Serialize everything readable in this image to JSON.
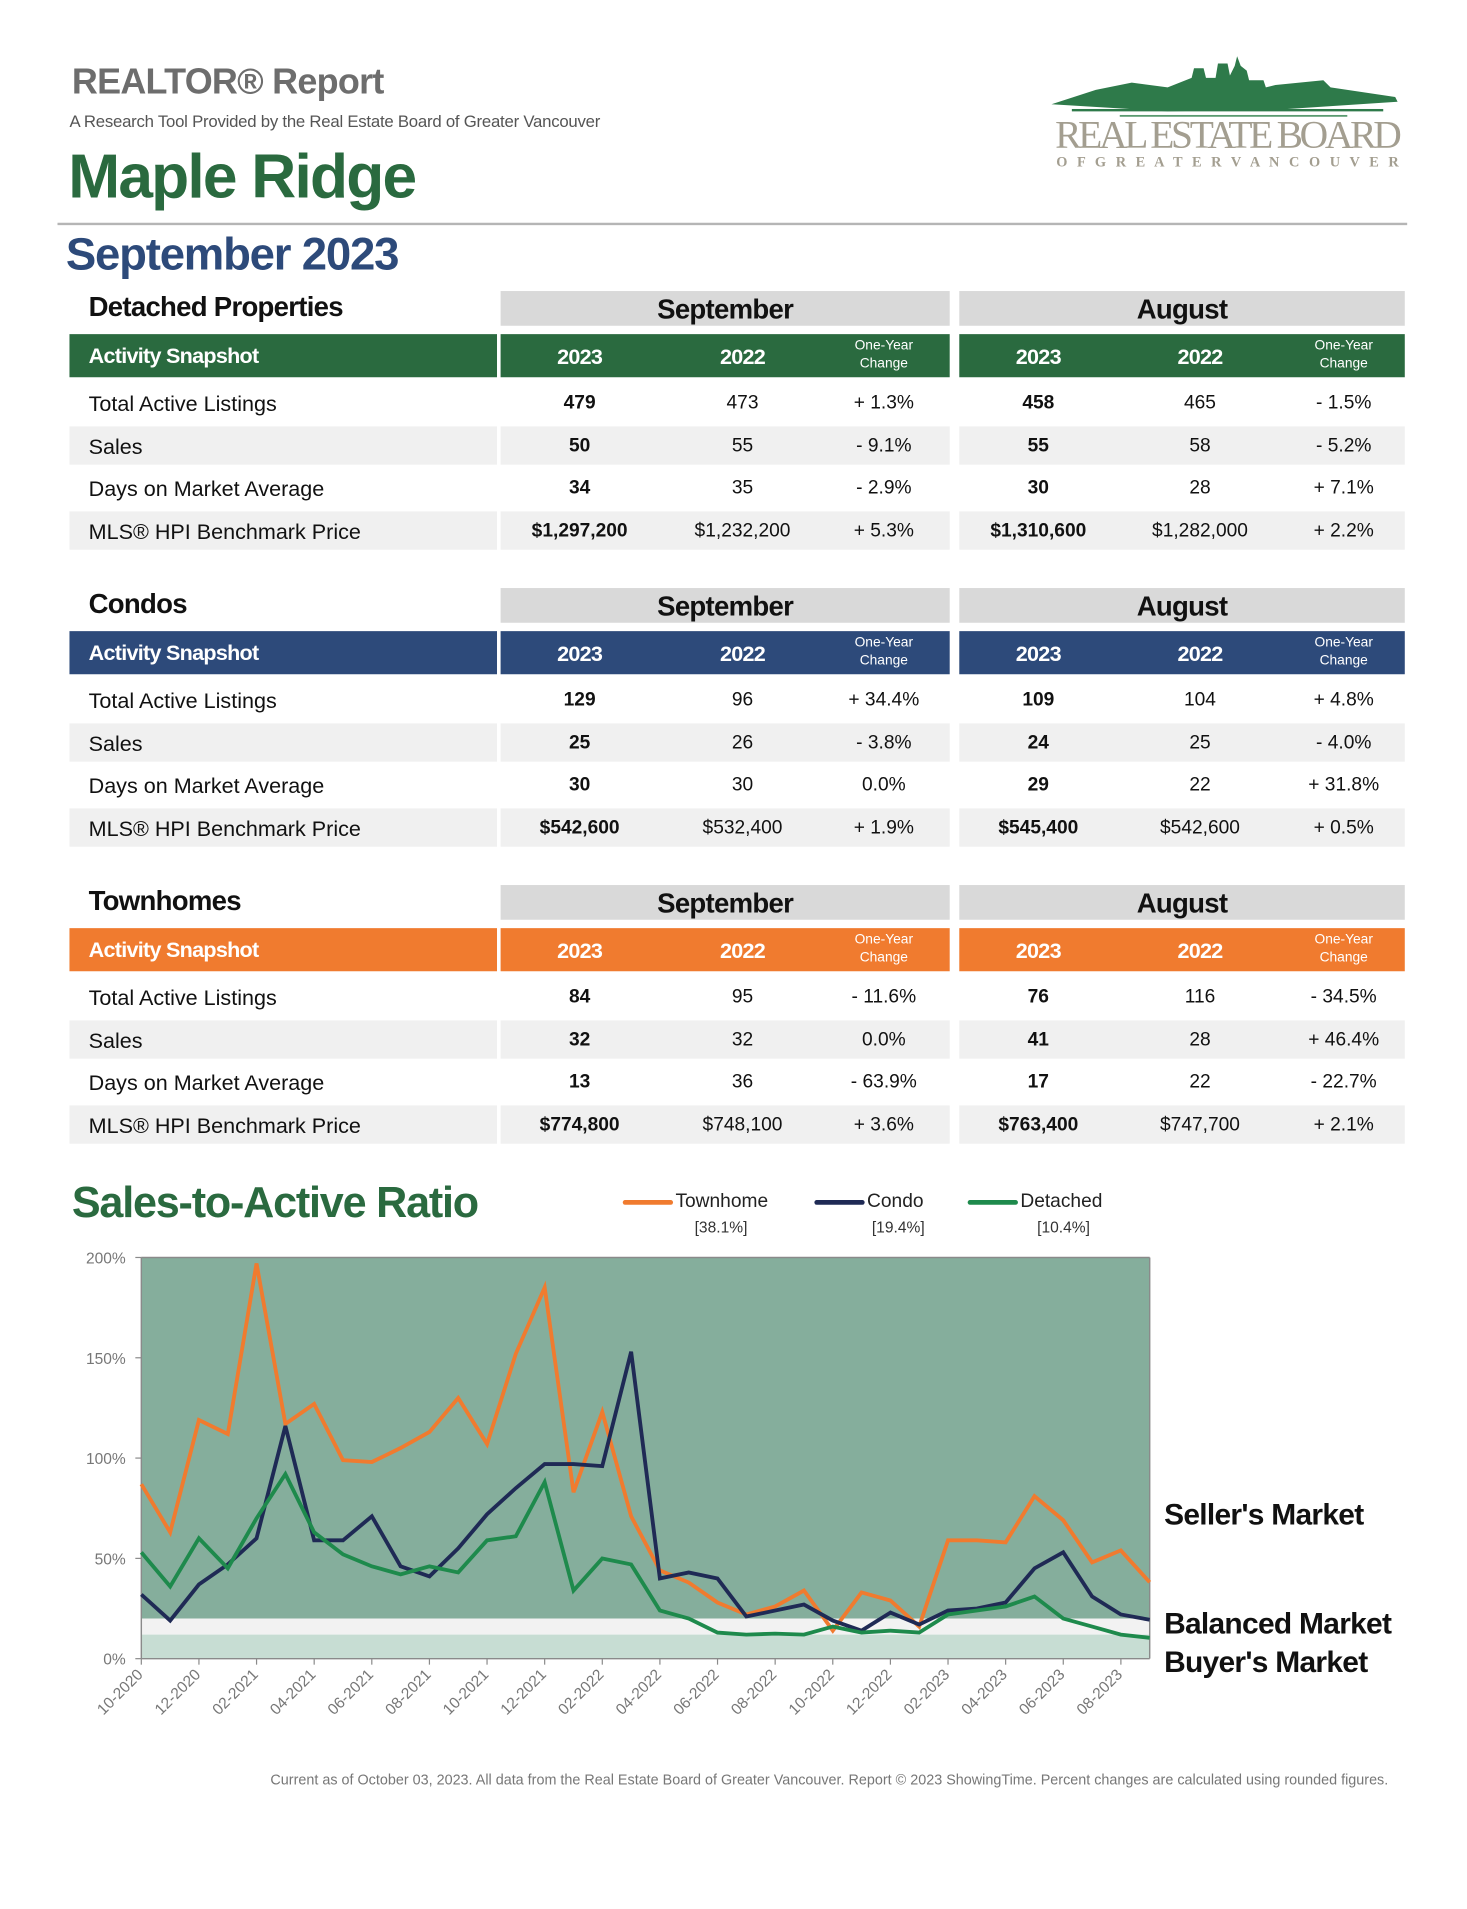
{
  "header": {
    "report_title": "REALTOR® Report",
    "subtitle": "A Research Tool Provided by the Real Estate Board of Greater Vancouver",
    "area": "Maple Ridge",
    "period": "September 2023",
    "logo": {
      "line1": "REAL ESTATE BOARD",
      "line2": "OF GREATER VANCOUVER",
      "color": "#2e7a4a",
      "text_color": "#a39e90"
    }
  },
  "columns": {
    "month1": "September",
    "month2": "August",
    "snapshot_label": "Activity Snapshot",
    "year_current": "2023",
    "year_prior": "2022",
    "change_line1": "One-Year",
    "change_line2": "Change"
  },
  "sections": [
    {
      "title": "Detached Properties",
      "color": "#2a6a3f",
      "rows": [
        {
          "label": "Total Active Listings",
          "m1": [
            "479",
            "473",
            "+ 1.3%"
          ],
          "m2": [
            "458",
            "465",
            "- 1.5%"
          ]
        },
        {
          "label": "Sales",
          "m1": [
            "50",
            "55",
            "- 9.1%"
          ],
          "m2": [
            "55",
            "58",
            "- 5.2%"
          ]
        },
        {
          "label": "Days on Market Average",
          "m1": [
            "34",
            "35",
            "- 2.9%"
          ],
          "m2": [
            "30",
            "28",
            "+ 7.1%"
          ]
        },
        {
          "label": "MLS® HPI Benchmark Price",
          "m1": [
            "$1,297,200",
            "$1,232,200",
            "+ 5.3%"
          ],
          "m2": [
            "$1,310,600",
            "$1,282,000",
            "+ 2.2%"
          ]
        }
      ]
    },
    {
      "title": "Condos",
      "color": "#2d4a7a",
      "rows": [
        {
          "label": "Total Active Listings",
          "m1": [
            "129",
            "96",
            "+ 34.4%"
          ],
          "m2": [
            "109",
            "104",
            "+ 4.8%"
          ]
        },
        {
          "label": "Sales",
          "m1": [
            "25",
            "26",
            "- 3.8%"
          ],
          "m2": [
            "24",
            "25",
            "- 4.0%"
          ]
        },
        {
          "label": "Days on Market Average",
          "m1": [
            "30",
            "30",
            "0.0%"
          ],
          "m2": [
            "29",
            "22",
            "+ 31.8%"
          ]
        },
        {
          "label": "MLS® HPI Benchmark Price",
          "m1": [
            "$542,600",
            "$532,400",
            "+ 1.9%"
          ],
          "m2": [
            "$545,400",
            "$542,600",
            "+ 0.5%"
          ]
        }
      ]
    },
    {
      "title": "Townhomes",
      "color": "#f07b2f",
      "rows": [
        {
          "label": "Total Active Listings",
          "m1": [
            "84",
            "95",
            "- 11.6%"
          ],
          "m2": [
            "76",
            "116",
            "- 34.5%"
          ]
        },
        {
          "label": "Sales",
          "m1": [
            "32",
            "32",
            "0.0%"
          ],
          "m2": [
            "41",
            "28",
            "+ 46.4%"
          ]
        },
        {
          "label": "Days on Market Average",
          "m1": [
            "13",
            "36",
            "- 63.9%"
          ],
          "m2": [
            "17",
            "22",
            "- 22.7%"
          ]
        },
        {
          "label": "MLS® HPI Benchmark Price",
          "m1": [
            "$774,800",
            "$748,100",
            "+ 3.6%"
          ],
          "m2": [
            "$763,400",
            "$747,700",
            "+ 2.1%"
          ]
        }
      ]
    }
  ],
  "chart_data": {
    "type": "line",
    "title": "Sales-to-Active Ratio",
    "x": [
      "10-2020",
      "11-2020",
      "12-2020",
      "01-2021",
      "02-2021",
      "03-2021",
      "04-2021",
      "05-2021",
      "06-2021",
      "07-2021",
      "08-2021",
      "09-2021",
      "10-2021",
      "11-2021",
      "12-2021",
      "01-2022",
      "02-2022",
      "03-2022",
      "04-2022",
      "05-2022",
      "06-2022",
      "07-2022",
      "08-2022",
      "09-2022",
      "10-2022",
      "11-2022",
      "12-2022",
      "01-2023",
      "02-2023",
      "03-2023",
      "04-2023",
      "05-2023",
      "06-2023",
      "07-2023",
      "08-2023",
      "09-2023"
    ],
    "x_tick_labels": [
      "10-2020",
      "12-2020",
      "02-2021",
      "04-2021",
      "06-2021",
      "08-2021",
      "10-2021",
      "12-2021",
      "02-2022",
      "04-2022",
      "06-2022",
      "08-2022",
      "10-2022",
      "12-2022",
      "02-2023",
      "04-2023",
      "06-2023",
      "08-2023"
    ],
    "y_ticks": [
      "0%",
      "50%",
      "100%",
      "150%",
      "200%"
    ],
    "ylim": [
      0,
      200
    ],
    "series": [
      {
        "name": "Townhome",
        "current": "[38.1%]",
        "color": "#f07b2f",
        "values": [
          87,
          63,
          119,
          112,
          197,
          117,
          127,
          99,
          98,
          105,
          113,
          130,
          107,
          152,
          185,
          83,
          123,
          71,
          44,
          38,
          28,
          22,
          26,
          34,
          14,
          33,
          29,
          16,
          59,
          59,
          58,
          81,
          69,
          48,
          54,
          38.1
        ]
      },
      {
        "name": "Condo",
        "current": "[19.4%]",
        "color": "#1f2a55",
        "values": [
          32,
          19,
          37,
          47,
          60,
          116,
          59,
          59,
          71,
          46,
          41,
          55,
          72,
          85,
          97,
          97,
          96,
          153,
          40,
          43,
          40,
          21,
          24,
          27,
          19,
          14,
          23,
          17,
          24,
          25,
          28,
          45,
          53,
          31,
          22,
          19.4
        ]
      },
      {
        "name": "Detached",
        "current": "[10.4%]",
        "color": "#1e8a4c",
        "values": [
          53,
          36,
          60,
          45,
          70,
          92,
          63,
          52,
          46,
          42,
          46,
          43,
          59,
          61,
          88,
          34,
          50,
          47,
          24,
          20,
          13,
          12,
          12.5,
          12,
          16,
          13,
          14,
          13,
          22,
          24,
          26,
          31,
          20,
          16,
          12,
          10.4
        ]
      }
    ],
    "bands": [
      {
        "label": "Seller's Market",
        "range": [
          20,
          200
        ],
        "color": "#85ae9c"
      },
      {
        "label": "Balanced Market",
        "range": [
          12,
          20
        ],
        "color": "#f2f2f2"
      },
      {
        "label": "Buyer's Market",
        "range": [
          0,
          12
        ],
        "color": "#c7ddd3"
      }
    ],
    "legend": "top"
  },
  "footer": "Current as of October 03, 2023. All data from the Real Estate Board of Greater Vancouver. Report © 2023 ShowingTime. Percent changes are calculated using rounded figures."
}
